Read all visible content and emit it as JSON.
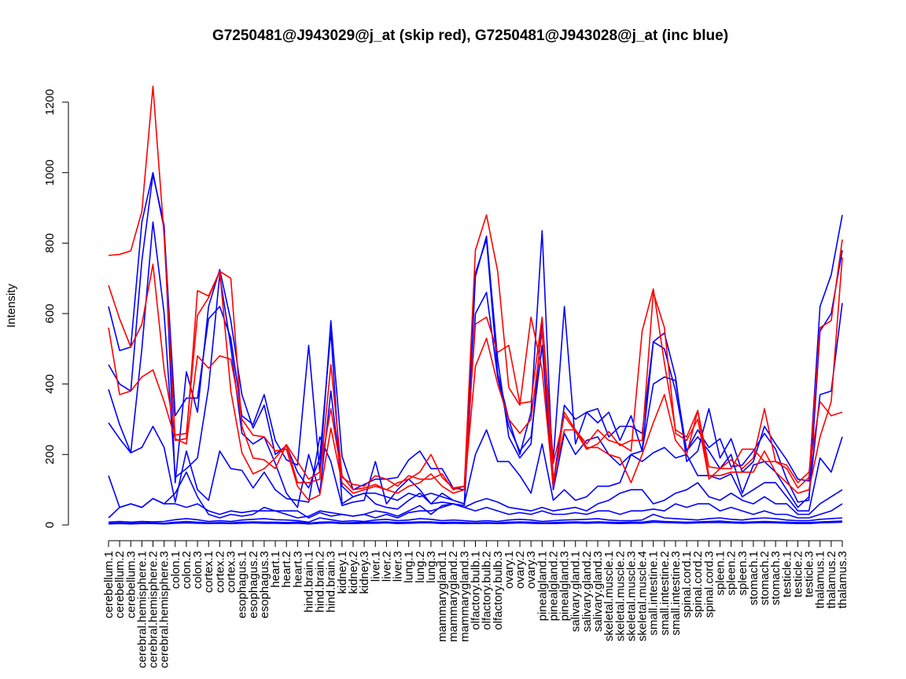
{
  "chart_data": {
    "type": "line",
    "title": "G7250481@J943029@j_at (skip red), G7250481@J943028@j_at (inc blue)",
    "xlabel": "",
    "ylabel": "Intensity",
    "ylim": [
      0,
      1200
    ],
    "yticks": [
      0,
      200,
      400,
      600,
      800,
      1000,
      1200
    ],
    "grid": false,
    "legend": "none",
    "colors": {
      "red": "#ff0000",
      "blue": "#0000ff"
    },
    "categories": [
      "cerebellum.1",
      "cerebellum.2",
      "cerebellum.3",
      "cerebral.hemisphere.1",
      "cerebral.hemisphere.2",
      "cerebral.hemisphere.3",
      "colon.1",
      "colon.2",
      "colon.3",
      "cortex.1",
      "cortex.2",
      "cortex.3",
      "esophagus.1",
      "esophagus.2",
      "esophagus.3",
      "heart.1",
      "heart.2",
      "heart.3",
      "hind.brain.1",
      "hind.brain.2",
      "hind.brain.3",
      "kidney.1",
      "kidney.2",
      "kidney.3",
      "liver.1",
      "liver.2",
      "liver.3",
      "lung.1",
      "lung.2",
      "lung.3",
      "mammarygland.1",
      "mammarygland.2",
      "mammarygland.3",
      "olfactory.bulb.1",
      "olfactory.bulb.2",
      "olfactory.bulb.3",
      "ovary.1",
      "ovary.2",
      "ovary.3",
      "pinealgland.1",
      "pinealgland.2",
      "pinealgland.3",
      "salivary.gland.1",
      "salivary.gland.2",
      "salivary.gland.3",
      "skeletal.muscle.1",
      "skeletal.muscle.2",
      "skeletal.muscle.3",
      "skeletal.muscle.4",
      "small.intestine.1",
      "small.intestine.2",
      "small.intestine.3",
      "spinal.cord.1",
      "spinal.cord.2",
      "spinal.cord.3",
      "spleen.1",
      "spleen.2",
      "spleen.3",
      "stomach.1",
      "stomach.2",
      "stomach.3",
      "testicle.1",
      "testicle.2",
      "testicle.3",
      "thalamus.1",
      "thalamus.2",
      "thalamus.3"
    ],
    "series": [
      {
        "color": "red",
        "values": [
          765,
          768,
          778,
          890,
          1245,
          820,
          240,
          245,
          665,
          650,
          720,
          700,
          280,
          190,
          185,
          160,
          228,
          120,
          120,
          130,
          455,
          140,
          100,
          105,
          115,
          100,
          120,
          130,
          150,
          200,
          135,
          105,
          110,
          780,
          880,
          720,
          390,
          340,
          590,
          440,
          110,
          320,
          270,
          230,
          270,
          240,
          230,
          210,
          550,
          670,
          460,
          270,
          250,
          325,
          165,
          160,
          185,
          160,
          190,
          330,
          180,
          160,
          105,
          135,
          560,
          580,
          810
        ]
      },
      {
        "color": "red",
        "values": [
          680,
          585,
          505,
          570,
          740,
          440,
          255,
          260,
          595,
          645,
          720,
          380,
          205,
          145,
          160,
          190,
          228,
          180,
          130,
          150,
          330,
          135,
          115,
          110,
          140,
          130,
          110,
          140,
          130,
          130,
          145,
          100,
          110,
          570,
          590,
          490,
          510,
          345,
          350,
          590,
          175,
          310,
          265,
          215,
          230,
          265,
          225,
          240,
          240,
          660,
          560,
          260,
          240,
          300,
          130,
          160,
          160,
          215,
          215,
          180,
          180,
          170,
          120,
          150,
          350,
          310,
          320
        ]
      },
      {
        "color": "red",
        "values": [
          560,
          370,
          380,
          420,
          440,
          350,
          245,
          230,
          480,
          445,
          480,
          470,
          300,
          255,
          250,
          210,
          215,
          110,
          70,
          85,
          275,
          120,
          90,
          100,
          110,
          100,
          90,
          110,
          120,
          145,
          110,
          90,
          100,
          450,
          530,
          400,
          300,
          260,
          300,
          550,
          130,
          270,
          270,
          220,
          220,
          200,
          190,
          120,
          200,
          290,
          370,
          240,
          200,
          325,
          140,
          140,
          150,
          150,
          150,
          210,
          150,
          120,
          90,
          100,
          250,
          350,
          760
        ]
      },
      {
        "color": "blue",
        "values": [
          620,
          495,
          505,
          860,
          1000,
          840,
          310,
          360,
          360,
          585,
          620,
          530,
          310,
          285,
          370,
          240,
          185,
          170,
          510,
          150,
          580,
          195,
          100,
          115,
          130,
          130,
          135,
          185,
          210,
          160,
          160,
          105,
          100,
          715,
          810,
          430,
          300,
          200,
          320,
          835,
          120,
          340,
          300,
          320,
          330,
          250,
          280,
          280,
          260,
          520,
          545,
          420,
          180,
          210,
          330,
          190,
          245,
          150,
          180,
          280,
          230,
          185,
          130,
          125,
          620,
          710,
          880
        ]
      },
      {
        "color": "blue",
        "values": [
          455,
          400,
          380,
          750,
          995,
          850,
          120,
          435,
          320,
          620,
          725,
          580,
          370,
          275,
          340,
          200,
          225,
          150,
          105,
          190,
          550,
          60,
          80,
          90,
          60,
          50,
          45,
          70,
          90,
          60,
          65,
          60,
          55,
          705,
          820,
          470,
          250,
          190,
          230,
          580,
          185,
          620,
          230,
          320,
          290,
          320,
          240,
          310,
          210,
          520,
          500,
          380,
          210,
          270,
          220,
          245,
          165,
          170,
          210,
          260,
          215,
          130,
          65,
          70,
          550,
          600,
          780
        ]
      },
      {
        "color": "blue",
        "values": [
          385,
          285,
          205,
          500,
          860,
          600,
          135,
          160,
          190,
          390,
          710,
          505,
          260,
          230,
          250,
          175,
          90,
          50,
          200,
          90,
          380,
          110,
          80,
          90,
          90,
          80,
          70,
          90,
          80,
          90,
          80,
          70,
          60,
          600,
          660,
          420,
          280,
          210,
          250,
          510,
          100,
          260,
          200,
          240,
          250,
          200,
          170,
          200,
          210,
          400,
          420,
          410,
          210,
          250,
          210,
          160,
          200,
          90,
          170,
          180,
          150,
          100,
          50,
          80,
          370,
          380,
          630
        ]
      },
      {
        "color": "blue",
        "values": [
          290,
          245,
          205,
          220,
          280,
          220,
          65,
          210,
          100,
          70,
          210,
          160,
          155,
          105,
          150,
          100,
          75,
          70,
          65,
          250,
          180,
          55,
          65,
          70,
          180,
          60,
          100,
          130,
          100,
          60,
          90,
          70,
          60,
          200,
          270,
          180,
          180,
          140,
          90,
          230,
          70,
          100,
          70,
          80,
          110,
          110,
          120,
          200,
          180,
          205,
          220,
          190,
          200,
          140,
          140,
          130,
          145,
          80,
          100,
          120,
          120,
          80,
          40,
          40,
          190,
          150,
          250
        ]
      },
      {
        "color": "blue",
        "values": [
          140,
          50,
          60,
          50,
          75,
          60,
          60,
          50,
          60,
          40,
          30,
          40,
          35,
          40,
          40,
          40,
          30,
          20,
          25,
          40,
          35,
          30,
          25,
          30,
          40,
          35,
          25,
          40,
          55,
          30,
          55,
          60,
          50,
          65,
          75,
          65,
          50,
          45,
          40,
          50,
          40,
          45,
          50,
          40,
          60,
          70,
          90,
          100,
          100,
          60,
          70,
          90,
          100,
          120,
          80,
          70,
          90,
          70,
          60,
          80,
          60,
          60,
          30,
          30,
          60,
          80,
          100
        ]
      },
      {
        "color": "blue",
        "values": [
          20,
          50,
          60,
          50,
          75,
          60,
          90,
          150,
          80,
          30,
          20,
          30,
          25,
          30,
          50,
          40,
          40,
          40,
          20,
          35,
          25,
          30,
          25,
          30,
          20,
          30,
          20,
          35,
          40,
          40,
          50,
          60,
          50,
          40,
          50,
          40,
          30,
          35,
          30,
          40,
          30,
          30,
          35,
          30,
          40,
          40,
          30,
          40,
          40,
          45,
          40,
          60,
          50,
          60,
          60,
          40,
          50,
          40,
          30,
          40,
          30,
          30,
          20,
          20,
          30,
          40,
          60
        ]
      },
      {
        "color": "blue",
        "values": [
          8,
          10,
          8,
          10,
          9,
          10,
          15,
          18,
          15,
          10,
          12,
          10,
          14,
          16,
          18,
          15,
          14,
          12,
          8,
          20,
          15,
          10,
          12,
          10,
          14,
          16,
          12,
          14,
          18,
          16,
          12,
          14,
          12,
          10,
          12,
          10,
          14,
          16,
          14,
          10,
          12,
          14,
          15,
          16,
          18,
          14,
          12,
          12,
          14,
          30,
          20,
          18,
          16,
          14,
          18,
          20,
          16,
          14,
          18,
          20,
          18,
          14,
          12,
          12,
          16,
          18,
          20
        ]
      },
      {
        "color": "blue",
        "values": [
          5,
          6,
          5,
          6,
          6,
          5,
          8,
          10,
          8,
          6,
          7,
          6,
          8,
          9,
          8,
          8,
          7,
          8,
          5,
          8,
          9,
          6,
          7,
          8,
          8,
          9,
          7,
          8,
          9,
          9,
          7,
          8,
          7,
          6,
          7,
          6,
          8,
          9,
          8,
          6,
          7,
          8,
          9,
          8,
          9,
          8,
          7,
          8,
          8,
          12,
          10,
          9,
          8,
          9,
          10,
          11,
          9,
          8,
          9,
          10,
          9,
          8,
          7,
          7,
          9,
          10,
          11
        ]
      },
      {
        "color": "blue",
        "values": [
          3,
          4,
          3,
          4,
          4,
          3,
          5,
          6,
          5,
          4,
          5,
          4,
          5,
          6,
          5,
          5,
          4,
          5,
          3,
          5,
          6,
          4,
          4,
          5,
          5,
          6,
          4,
          5,
          6,
          6,
          4,
          5,
          4,
          4,
          5,
          4,
          5,
          6,
          5,
          4,
          4,
          5,
          6,
          5,
          6,
          5,
          4,
          5,
          5,
          8,
          7,
          6,
          5,
          6,
          7,
          7,
          6,
          5,
          6,
          7,
          6,
          5,
          4,
          4,
          6,
          7,
          8
        ]
      }
    ]
  }
}
